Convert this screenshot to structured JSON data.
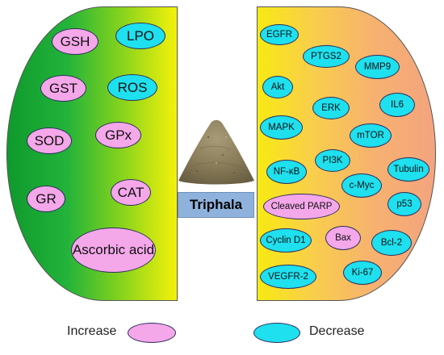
{
  "center_label": "Triphala",
  "colors": {
    "increase": "#f4a7e9",
    "decrease": "#1ee0ee",
    "left_panel_gradient": [
      "#0f9a2c",
      "#7fd11e",
      "#f4f20a"
    ],
    "right_panel_gradient": [
      "#f7ea12",
      "#f6b26f",
      "#f4a37f"
    ],
    "center_box": "#8eb2dc"
  },
  "left_nodes": [
    {
      "label": "GSH",
      "type": "increase"
    },
    {
      "label": "LPO",
      "type": "decrease"
    },
    {
      "label": "GST",
      "type": "increase"
    },
    {
      "label": "ROS",
      "type": "decrease"
    },
    {
      "label": "SOD",
      "type": "increase"
    },
    {
      "label": "GPx",
      "type": "increase"
    },
    {
      "label": "GR",
      "type": "increase"
    },
    {
      "label": "CAT",
      "type": "increase"
    },
    {
      "label": "Ascorbic acid",
      "type": "increase"
    }
  ],
  "right_nodes": [
    {
      "label": "EGFR",
      "type": "decrease"
    },
    {
      "label": "PTGS2",
      "type": "decrease"
    },
    {
      "label": "MMP9",
      "type": "decrease"
    },
    {
      "label": "Akt",
      "type": "decrease"
    },
    {
      "label": "IL6",
      "type": "decrease"
    },
    {
      "label": "ERK",
      "type": "decrease"
    },
    {
      "label": "MAPK",
      "type": "decrease"
    },
    {
      "label": "mTOR",
      "type": "decrease"
    },
    {
      "label": "PI3K",
      "type": "decrease"
    },
    {
      "label": "NF-κB",
      "type": "decrease"
    },
    {
      "label": "Tubulin",
      "type": "decrease"
    },
    {
      "label": "c-Myc",
      "type": "decrease"
    },
    {
      "label": "Cleaved PARP",
      "type": "increase"
    },
    {
      "label": "p53",
      "type": "increase"
    },
    {
      "label": "Cyclin D1",
      "type": "decrease"
    },
    {
      "label": "Bax",
      "type": "increase"
    },
    {
      "label": "Bcl-2",
      "type": "decrease"
    },
    {
      "label": "VEGFR-2",
      "type": "decrease"
    },
    {
      "label": "Ki-67",
      "type": "decrease"
    }
  ],
  "legend": {
    "increase_label": "Increase",
    "decrease_label": "Decrease"
  }
}
